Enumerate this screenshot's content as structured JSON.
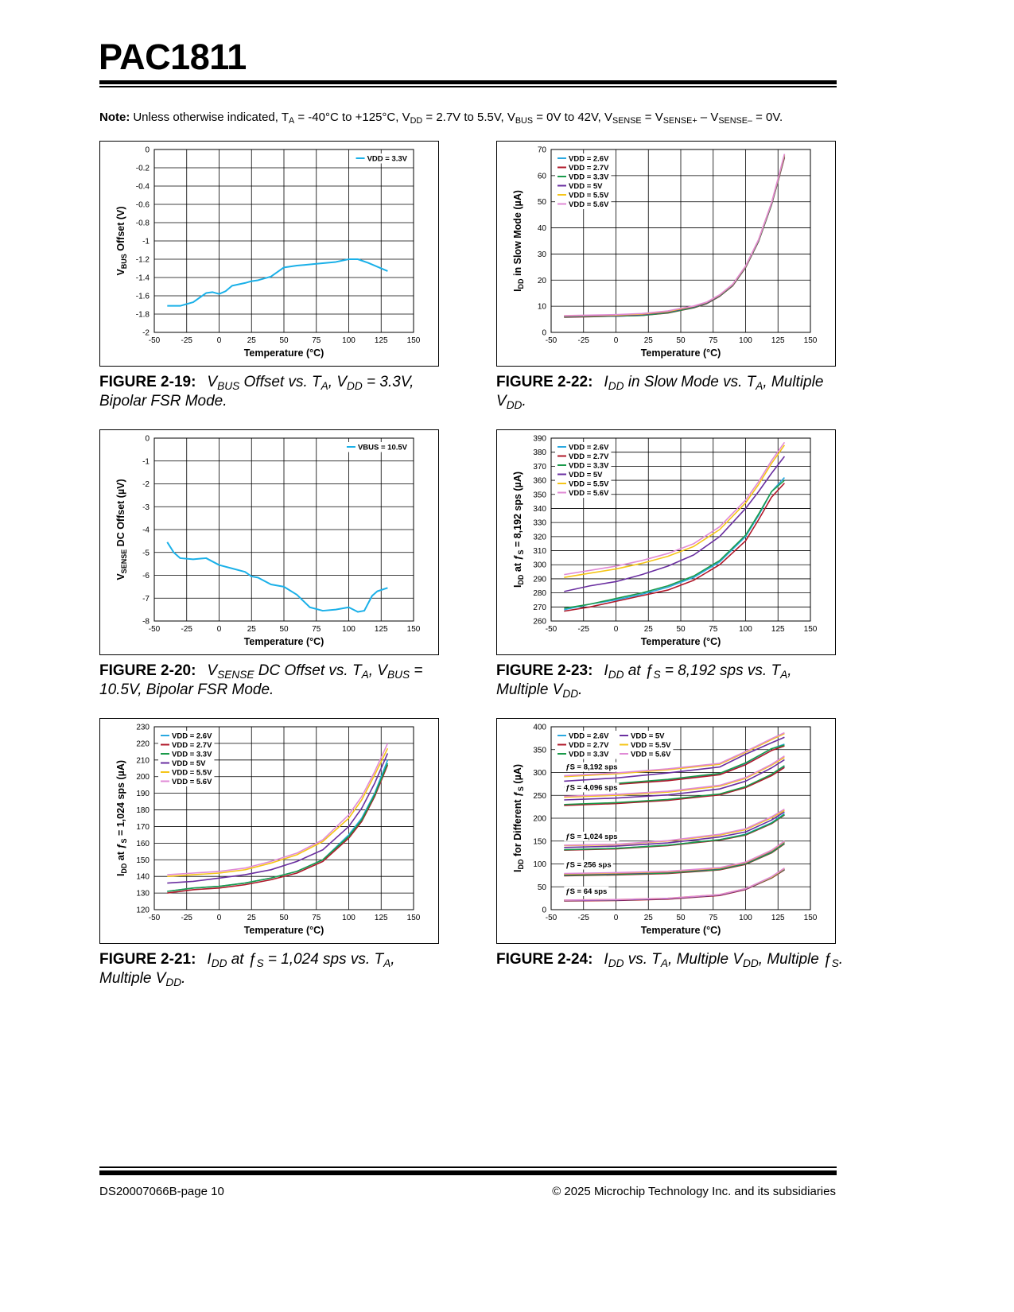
{
  "header": {
    "title": "PAC1811"
  },
  "note": {
    "label": "Note:",
    "text": [
      "Unless otherwise indicated, T",
      "A",
      " = -40°C to +125°C, V",
      "DD",
      " = 2.7V to 5.5V, V",
      "BUS",
      " = 0V to 42V, V",
      "SENSE",
      " = V",
      "SENSE+",
      " – V",
      "SENSE–",
      " = 0V."
    ]
  },
  "chart_data": [
    {
      "type": "line",
      "figure_number": "FIGURE 2-19:",
      "caption": [
        "V",
        "BUS",
        " Offset vs. T",
        "A",
        ", V",
        "DD",
        " = 3.3V, Bipolar FSR Mode."
      ],
      "x_label": "Temperature (°C)",
      "y_label": [
        "V",
        "BUS",
        " Offset (V)"
      ],
      "xlim": [
        -50,
        150
      ],
      "xticks": [
        -50,
        -25,
        0,
        25,
        50,
        75,
        100,
        125,
        150
      ],
      "ylim": [
        -2,
        0
      ],
      "yticks": [
        -2,
        -1.8,
        -1.6,
        -1.4,
        -1.2,
        -1,
        -0.8,
        -0.6,
        -0.4,
        -0.2,
        0
      ],
      "grid": true,
      "legend": "upper right",
      "x": [
        -40,
        -30,
        -20,
        -10,
        -5,
        0,
        5,
        10,
        20,
        25,
        30,
        40,
        50,
        60,
        75,
        90,
        100,
        107,
        115,
        130
      ],
      "series": [
        {
          "name": "VDD = 3.3V",
          "color": "#1ab0e8",
          "values": [
            -1.71,
            -1.71,
            -1.67,
            -1.57,
            -1.56,
            -1.58,
            -1.55,
            -1.49,
            -1.46,
            -1.44,
            -1.43,
            -1.39,
            -1.29,
            -1.27,
            -1.25,
            -1.23,
            -1.2,
            -1.2,
            -1.24,
            -1.33
          ]
        }
      ]
    },
    {
      "type": "line",
      "figure_number": "FIGURE 2-22:",
      "caption": [
        "I",
        "DD",
        " in Slow Mode vs. T",
        "A",
        ", Multiple V",
        "DD",
        "."
      ],
      "x_label": "Temperature (°C)",
      "y_label": [
        "I",
        "DD",
        " in Slow Mode (µA)"
      ],
      "xlim": [
        -50,
        150
      ],
      "xticks": [
        -50,
        -25,
        0,
        25,
        50,
        75,
        100,
        125,
        150
      ],
      "ylim": [
        0,
        70
      ],
      "yticks": [
        0,
        10,
        20,
        30,
        40,
        50,
        60,
        70
      ],
      "grid": true,
      "legend": "upper left",
      "x": [
        -40,
        -20,
        0,
        20,
        40,
        50,
        60,
        70,
        80,
        90,
        100,
        110,
        120,
        125,
        130
      ],
      "series": [
        {
          "name": "VDD = 2.6V",
          "color": "#29a8e0",
          "values": [
            6,
            6.2,
            6.3,
            6.6,
            7.6,
            8.6,
            9.6,
            11.2,
            14,
            18,
            25,
            35,
            49,
            58,
            67
          ]
        },
        {
          "name": "VDD = 2.7V",
          "color": "#b0182a",
          "values": [
            5.8,
            6,
            6.2,
            6.5,
            7.4,
            8.4,
            9.4,
            11,
            13.8,
            17.8,
            24.8,
            34.8,
            48.8,
            57.8,
            67
          ]
        },
        {
          "name": "VDD = 3.3V",
          "color": "#1a9a4a",
          "values": [
            5.9,
            6.1,
            6.2,
            6.5,
            7.5,
            8.5,
            9.5,
            11.1,
            13.9,
            17.9,
            24.9,
            34.9,
            48.9,
            58,
            67.5
          ]
        },
        {
          "name": "VDD = 5V",
          "color": "#6a2fa0",
          "values": [
            6.1,
            6.3,
            6.4,
            6.8,
            7.8,
            8.8,
            9.8,
            11.3,
            14.1,
            18.1,
            25.1,
            35.2,
            49.2,
            58.3,
            67.8
          ]
        },
        {
          "name": "VDD = 5.5V",
          "color": "#f5c518",
          "values": [
            6.3,
            6.5,
            6.6,
            7,
            8,
            9,
            10,
            11.5,
            14.3,
            18.3,
            25.3,
            35.4,
            49.5,
            58.6,
            68
          ]
        },
        {
          "name": "VDD = 5.6V",
          "color": "#e08ad6",
          "values": [
            6.4,
            6.6,
            6.8,
            7.2,
            8.2,
            9.2,
            10.1,
            11.6,
            14.4,
            18.4,
            25.4,
            35.5,
            49.6,
            58.8,
            68.3
          ]
        }
      ]
    },
    {
      "type": "line",
      "figure_number": "FIGURE 2-20:",
      "caption": [
        "V",
        "SENSE",
        " DC Offset vs. T",
        "A",
        ", V",
        "BUS",
        " = 10.5V, Bipolar FSR Mode."
      ],
      "x_label": "Temperature (°C)",
      "y_label": [
        "V",
        "SENSE",
        " DC Offset (µV)"
      ],
      "xlim": [
        -50,
        150
      ],
      "xticks": [
        -50,
        -25,
        0,
        25,
        50,
        75,
        100,
        125,
        150
      ],
      "ylim": [
        -8,
        0
      ],
      "yticks": [
        -8,
        -7,
        -6,
        -5,
        -4,
        -3,
        -2,
        -1,
        0
      ],
      "grid": true,
      "legend": "upper right",
      "x": [
        -40,
        -35,
        -30,
        -20,
        -10,
        0,
        10,
        20,
        25,
        30,
        40,
        50,
        60,
        70,
        80,
        90,
        100,
        107,
        112,
        118,
        122,
        130
      ],
      "series": [
        {
          "name": "VBUS = 10.5V",
          "color": "#1ab0e8",
          "values": [
            -4.55,
            -5,
            -5.25,
            -5.3,
            -5.25,
            -5.55,
            -5.7,
            -5.85,
            -6.05,
            -6.1,
            -6.4,
            -6.5,
            -6.85,
            -7.4,
            -7.55,
            -7.5,
            -7.4,
            -7.6,
            -7.55,
            -6.9,
            -6.7,
            -6.55
          ]
        }
      ]
    },
    {
      "type": "line",
      "figure_number": "FIGURE 2-23:",
      "caption": [
        "I",
        "DD",
        " at ƒ",
        "S",
        " = 8,192 sps vs. T",
        "A",
        ", Multiple V",
        "DD",
        "."
      ],
      "x_label": "Temperature (°C)",
      "y_label": [
        "I",
        "DD",
        " at ƒ",
        "S",
        " = 8,192 sps (µA)"
      ],
      "xlim": [
        -50,
        150
      ],
      "xticks": [
        -50,
        -25,
        0,
        25,
        50,
        75,
        100,
        125,
        150
      ],
      "ylim": [
        260,
        390
      ],
      "yticks": [
        260,
        270,
        280,
        290,
        300,
        310,
        320,
        330,
        340,
        350,
        360,
        370,
        380,
        390
      ],
      "grid": true,
      "legend": "upper left",
      "x": [
        -40,
        -20,
        0,
        20,
        40,
        60,
        80,
        100,
        110,
        120,
        130
      ],
      "series": [
        {
          "name": "VDD = 2.6V",
          "color": "#29a8e0",
          "values": [
            268,
            272,
            275,
            279,
            284,
            291,
            302,
            320,
            335,
            352,
            362
          ]
        },
        {
          "name": "VDD = 2.7V",
          "color": "#b0182a",
          "values": [
            267,
            270,
            274,
            278,
            282,
            289,
            300,
            317,
            332,
            348,
            358
          ]
        },
        {
          "name": "VDD = 3.3V",
          "color": "#1a9a4a",
          "values": [
            269,
            272,
            276,
            280,
            285,
            292,
            303,
            321,
            336,
            352,
            360
          ]
        },
        {
          "name": "VDD = 5V",
          "color": "#6a2fa0",
          "values": [
            281,
            285,
            288,
            293,
            299,
            307,
            320,
            340,
            352,
            365,
            377
          ]
        },
        {
          "name": "VDD = 5.5V",
          "color": "#f5c518",
          "values": [
            291,
            294,
            297,
            301,
            306,
            313,
            325,
            344,
            357,
            372,
            385
          ]
        },
        {
          "name": "VDD = 5.6V",
          "color": "#e08ad6",
          "values": [
            293,
            296,
            299,
            303,
            308,
            315,
            327,
            346,
            359,
            374,
            387
          ]
        }
      ]
    },
    {
      "type": "line",
      "figure_number": "FIGURE 2-21:",
      "caption": [
        "I",
        "DD",
        " at ƒ",
        "S",
        " = 1,024 sps vs. T",
        "A",
        ", Multiple V",
        "DD",
        "."
      ],
      "x_label": "Temperature (°C)",
      "y_label": [
        "I",
        "DD",
        " at ƒ",
        "S",
        " = 1,024 sps (µA)"
      ],
      "xlim": [
        -50,
        150
      ],
      "xticks": [
        -50,
        -25,
        0,
        25,
        50,
        75,
        100,
        125,
        150
      ],
      "ylim": [
        120,
        230
      ],
      "yticks": [
        120,
        130,
        140,
        150,
        160,
        170,
        180,
        190,
        200,
        210,
        220,
        230
      ],
      "grid": true,
      "legend": "upper left",
      "x": [
        -40,
        -20,
        0,
        20,
        40,
        60,
        80,
        100,
        110,
        120,
        130
      ],
      "series": [
        {
          "name": "VDD = 2.6V",
          "color": "#29a8e0",
          "values": [
            131,
            133,
            134,
            136,
            139,
            143,
            150,
            165,
            175,
            190,
            210
          ]
        },
        {
          "name": "VDD = 2.7V",
          "color": "#b0182a",
          "values": [
            130,
            132,
            133,
            135,
            138,
            142,
            149,
            163,
            173,
            188,
            207
          ]
        },
        {
          "name": "VDD = 3.3V",
          "color": "#1a9a4a",
          "values": [
            131,
            133,
            134,
            136,
            139,
            143,
            150,
            164,
            174,
            189,
            208
          ]
        },
        {
          "name": "VDD = 5V",
          "color": "#6a2fa0",
          "values": [
            136,
            137,
            139,
            141,
            144,
            149,
            156,
            170,
            181,
            196,
            214
          ]
        },
        {
          "name": "VDD = 5.5V",
          "color": "#f5c518",
          "values": [
            140,
            141,
            142,
            144,
            148,
            153,
            161,
            175,
            186,
            201,
            217
          ]
        },
        {
          "name": "VDD = 5.6V",
          "color": "#e08ad6",
          "values": [
            141,
            142,
            143,
            145,
            149,
            154,
            162,
            177,
            188,
            203,
            220
          ]
        }
      ]
    },
    {
      "type": "line",
      "figure_number": "FIGURE 2-24:",
      "caption": [
        "I",
        "DD",
        " vs. T",
        "A",
        ", Multiple V",
        "DD",
        ", Multiple ƒ",
        "S",
        "."
      ],
      "x_label": "Temperature (°C)",
      "y_label": [
        "I",
        "DD",
        " for Different ƒ",
        "S",
        " (µA)"
      ],
      "xlim": [
        -50,
        150
      ],
      "xticks": [
        -50,
        -25,
        0,
        25,
        50,
        75,
        100,
        125,
        150
      ],
      "ylim": [
        0,
        400
      ],
      "yticks": [
        0,
        50,
        100,
        150,
        200,
        250,
        300,
        350,
        400
      ],
      "grid": true,
      "legend": "upper left",
      "legend_columns": 2,
      "annotations": [
        "ƒS = 8,192 sps",
        "ƒS = 4,096 sps",
        "ƒS = 1,024 sps",
        "ƒS = 256 sps",
        "ƒS = 64 sps"
      ],
      "x": [
        -40,
        0,
        40,
        80,
        100,
        120,
        130
      ],
      "series": [
        {
          "name": "VDD = 2.6V",
          "color": "#29a8e0",
          "values": [
            [
              268,
              275,
              284,
              297,
              320,
              352,
              362
            ],
            [
              229,
              233,
              240,
              252,
              268,
              295,
              313
            ],
            [
              131,
              134,
              141,
              153,
              165,
              190,
              210
            ],
            [
              75,
              77,
              80,
              88,
              100,
              125,
              145
            ],
            [
              20,
              21,
              24,
              32,
              45,
              70,
              88
            ]
          ]
        },
        {
          "name": "VDD = 2.7V",
          "color": "#b0182a",
          "values": [
            [
              267,
              274,
              282,
              295,
              317,
              348,
              358
            ],
            [
              228,
              232,
              239,
              251,
              267,
              293,
              311
            ],
            [
              130,
              133,
              140,
              152,
              163,
              188,
              207
            ],
            [
              74,
              76,
              79,
              87,
              99,
              124,
              144
            ],
            [
              19,
              20,
              23,
              31,
              44,
              69,
              87
            ]
          ]
        },
        {
          "name": "VDD = 3.3V",
          "color": "#1a9a4a",
          "values": [
            [
              269,
              276,
              285,
              298,
              321,
              352,
              360
            ],
            [
              230,
              234,
              241,
              253,
              269,
              296,
              315
            ],
            [
              131,
              134,
              141,
              153,
              164,
              189,
              208
            ],
            [
              75,
              77,
              80,
              88,
              100,
              125,
              145
            ],
            [
              20,
              21,
              24,
              32,
              45,
              70,
              88
            ]
          ]
        },
        {
          "name": "VDD = 5V",
          "color": "#6a2fa0",
          "values": [
            [
              281,
              288,
              299,
              312,
              340,
              365,
              377
            ],
            [
              240,
              244,
              251,
              264,
              281,
              310,
              328
            ],
            [
              136,
              139,
              146,
              159,
              170,
              196,
              214
            ],
            [
              77,
              79,
              82,
              90,
              102,
              128,
              148
            ],
            [
              20,
              21,
              24,
              32,
              45,
              71,
              89
            ]
          ]
        },
        {
          "name": "VDD = 5.5V",
          "color": "#f5c518",
          "values": [
            [
              291,
              297,
              306,
              318,
              344,
              372,
              385
            ],
            [
              246,
              250,
              257,
              270,
              287,
              316,
              333
            ],
            [
              140,
              142,
              150,
              163,
              175,
              201,
              217
            ],
            [
              78,
              80,
              83,
              91,
              103,
              129,
              149
            ],
            [
              21,
              22,
              25,
              33,
              46,
              71,
              90
            ]
          ]
        },
        {
          "name": "VDD = 5.6V",
          "color": "#e08ad6",
          "values": [
            [
              293,
              299,
              308,
              320,
              346,
              374,
              387
            ],
            [
              248,
              252,
              259,
              272,
              289,
              318,
              336
            ],
            [
              141,
              143,
              151,
              165,
              177,
              203,
              220
            ],
            [
              79,
              81,
              84,
              92,
              104,
              130,
              150
            ],
            [
              21,
              22,
              25,
              33,
              46,
              72,
              91
            ]
          ]
        }
      ]
    }
  ],
  "footer": {
    "left": "DS20007066B-page 10",
    "right": "© 2025 Microchip Technology Inc. and its subsidiaries"
  }
}
